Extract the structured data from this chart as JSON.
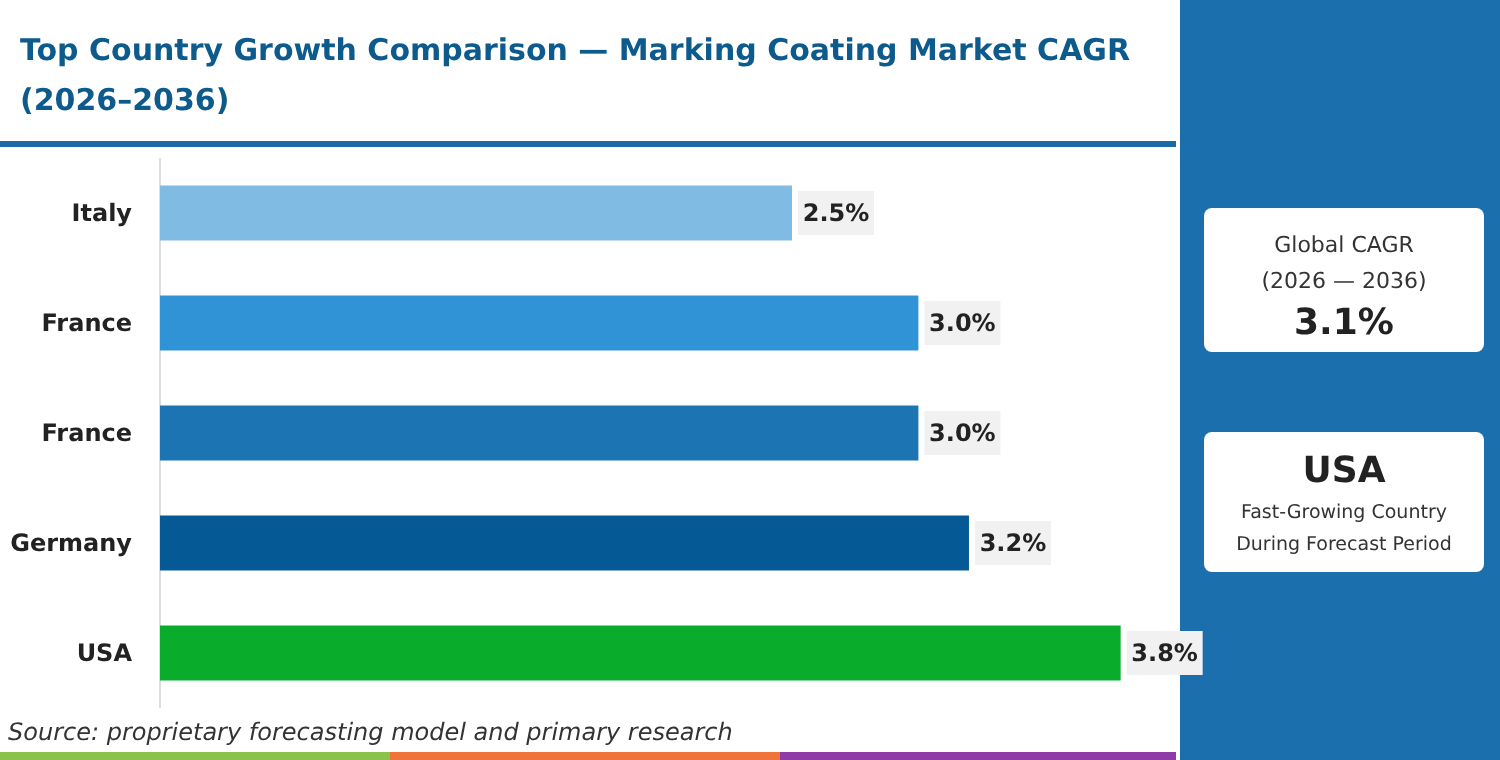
{
  "chart_data": {
    "type": "bar",
    "orientation": "horizontal",
    "title": "Top Country Growth Comparison — Marking Coating Market CAGR (2026–2036)",
    "categories": [
      "Italy",
      "France",
      "France",
      "Germany",
      "USA"
    ],
    "values": [
      2.5,
      3.0,
      3.0,
      3.2,
      3.8
    ],
    "colors": [
      "#7fbbe2",
      "#2f93d6",
      "#1c74b3",
      "#055a95",
      "#0aad2b"
    ],
    "value_labels": [
      "2.5%",
      "3.0%",
      "3.0%",
      "3.2%",
      "3.8%"
    ],
    "annotations": [
      "Global CAGR (2026 — 2036)",
      "3.1%",
      "USA",
      "Fast-Growing Country During Forecast Period",
      "Source: proprietary forecasting model and primary research"
    ]
  }
}
